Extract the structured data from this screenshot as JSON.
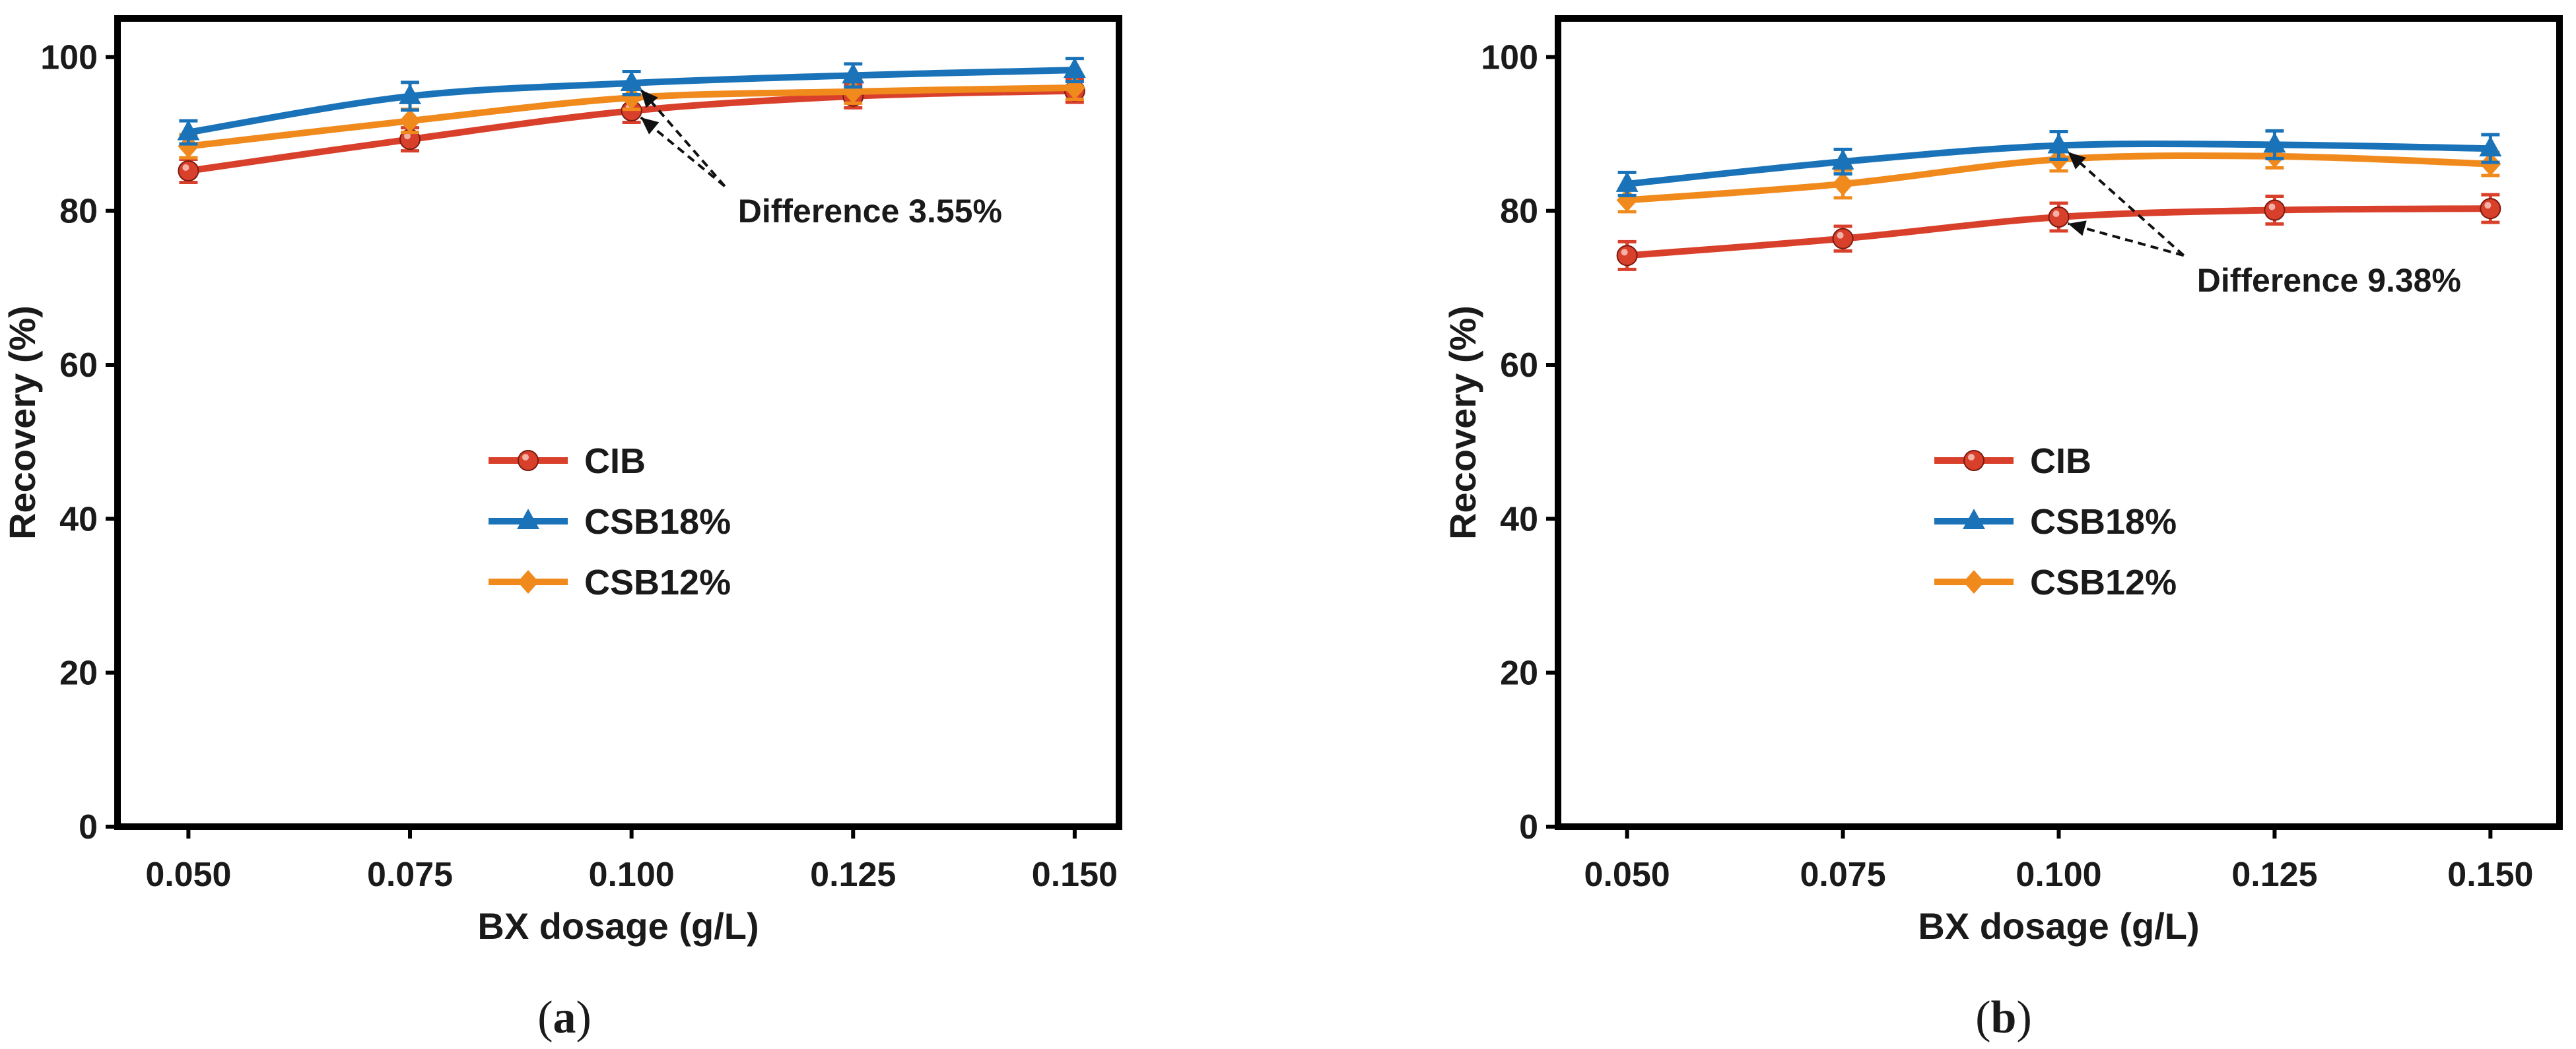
{
  "colors": {
    "CIB": "#d9402b",
    "CSB18%": "#1a73b8",
    "CSB12%": "#f08a1c",
    "frame": "#000000"
  },
  "chart_data": [
    {
      "type": "line",
      "panel": "a",
      "caption_open": "(",
      "caption_letter": "a",
      "caption_close": ")",
      "xlabel": "BX dosage (g/L)",
      "ylabel": "Recovery (%)",
      "x": [
        0.05,
        0.075,
        0.1,
        0.125,
        0.15
      ],
      "x_tick_labels": [
        "0.050",
        "0.075",
        "0.100",
        "0.125",
        "0.150"
      ],
      "y_tick_labels": [
        "0",
        "20",
        "40",
        "60",
        "80",
        "100"
      ],
      "y_ticks": [
        0,
        20,
        40,
        60,
        80,
        100
      ],
      "xlim": [
        0.042,
        0.155
      ],
      "ylim": [
        0,
        105
      ],
      "legend_position": "center-left",
      "series": [
        {
          "name": "CIB",
          "marker": "circle",
          "values": [
            85.2,
            89.3,
            93.0,
            94.9,
            95.6
          ],
          "errors": [
            1.5,
            1.5,
            1.5,
            1.5,
            1.5
          ]
        },
        {
          "name": "CSB18%",
          "marker": "triangle",
          "values": [
            90.2,
            94.9,
            96.6,
            97.6,
            98.3
          ],
          "errors": [
            1.5,
            1.8,
            1.5,
            1.5,
            1.5
          ]
        },
        {
          "name": "CSB12%",
          "marker": "diamond",
          "values": [
            88.4,
            91.7,
            94.7,
            95.5,
            96.0
          ],
          "errors": [
            1.5,
            1.5,
            1.5,
            1.5,
            1.5
          ]
        }
      ],
      "annotation": {
        "text": "Difference 3.55%",
        "x": 0.1,
        "targets": [
          96.6,
          93.0
        ],
        "label_x": 0.112,
        "label_y": 78.5
      }
    },
    {
      "type": "line",
      "panel": "b",
      "caption_open": "(",
      "caption_letter": "b",
      "caption_close": ")",
      "xlabel": "BX dosage (g/L)",
      "ylabel": "Recovery (%)",
      "x": [
        0.05,
        0.075,
        0.1,
        0.125,
        0.15
      ],
      "x_tick_labels": [
        "0.050",
        "0.075",
        "0.100",
        "0.125",
        "0.150"
      ],
      "y_tick_labels": [
        "0",
        "20",
        "40",
        "60",
        "80",
        "100"
      ],
      "y_ticks": [
        0,
        20,
        40,
        60,
        80,
        100
      ],
      "xlim": [
        0.042,
        0.158
      ],
      "ylim": [
        0,
        105
      ],
      "legend_position": "center-left",
      "series": [
        {
          "name": "CIB",
          "marker": "circle",
          "values": [
            74.2,
            76.4,
            79.2,
            80.1,
            80.3
          ],
          "errors": [
            1.8,
            1.6,
            1.8,
            1.8,
            1.8
          ]
        },
        {
          "name": "CSB18%",
          "marker": "triangle",
          "values": [
            83.5,
            86.4,
            88.5,
            88.6,
            88.1
          ],
          "errors": [
            1.5,
            1.6,
            1.8,
            1.8,
            1.8
          ]
        },
        {
          "name": "CSB12%",
          "marker": "diamond",
          "values": [
            81.4,
            83.5,
            86.7,
            87.1,
            86.1
          ],
          "errors": [
            1.5,
            1.8,
            1.5,
            1.5,
            1.5
          ]
        }
      ],
      "annotation": {
        "text": "Difference 9.38%",
        "x": 0.1,
        "targets": [
          88.5,
          79.2
        ],
        "label_x": 0.116,
        "label_y": 69.5
      }
    }
  ]
}
